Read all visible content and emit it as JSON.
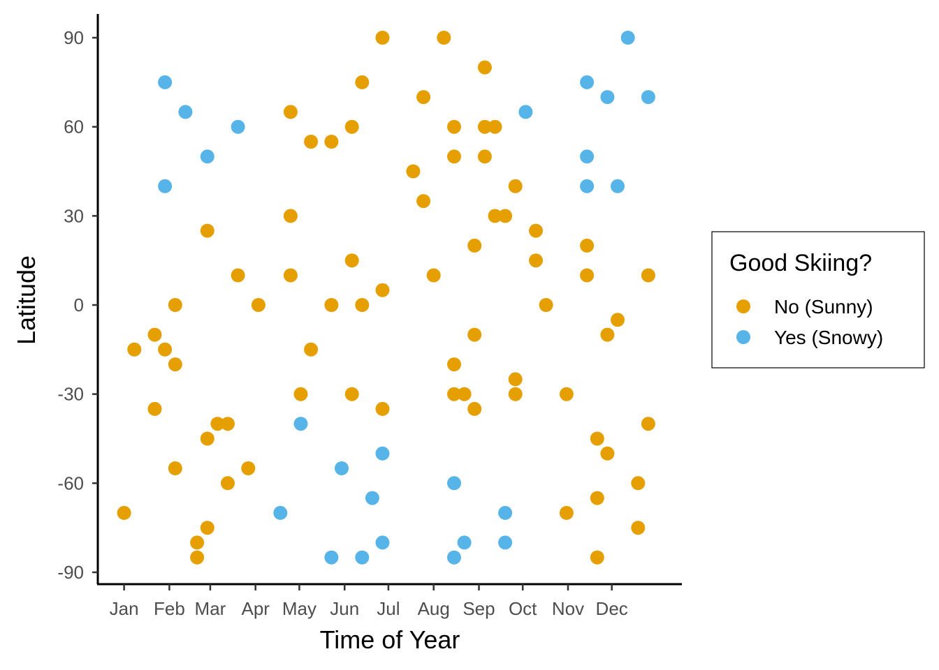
{
  "chart_data": {
    "type": "scatter",
    "xlabel": "Time of Year",
    "ylabel": "Latitude",
    "x_tick_labels": [
      "Jan",
      "Feb",
      "Mar",
      "Apr",
      "May",
      "Jun",
      "Jul",
      "Aug",
      "Sep",
      "Oct",
      "Nov",
      "Dec"
    ],
    "x_ticks_day_of_year": [
      1,
      32,
      60,
      91,
      121,
      152,
      182,
      213,
      244,
      274,
      305,
      335
    ],
    "xlim": [
      -17,
      383
    ],
    "y_ticks": [
      90,
      60,
      30,
      0,
      -30,
      -60,
      -90
    ],
    "ylim": [
      -94,
      98
    ],
    "grid": false,
    "legend": {
      "title": "Good Skiing?",
      "placement": "right",
      "entries": [
        {
          "label": "No (Sunny)",
          "color": "#E69F00"
        },
        {
          "label": "Yes (Snowy)",
          "color": "#56B4E9"
        }
      ]
    },
    "series": [
      {
        "name": "No (Sunny)",
        "color": "#E69F00",
        "points": [
          {
            "x": 1,
            "y": -70
          },
          {
            "x": 8,
            "y": -15
          },
          {
            "x": 22,
            "y": -10
          },
          {
            "x": 22,
            "y": -35
          },
          {
            "x": 29,
            "y": -15
          },
          {
            "x": 36,
            "y": 0
          },
          {
            "x": 36,
            "y": -20
          },
          {
            "x": 36,
            "y": -55
          },
          {
            "x": 51,
            "y": -80
          },
          {
            "x": 51,
            "y": -85
          },
          {
            "x": 58,
            "y": 25
          },
          {
            "x": 58,
            "y": -45
          },
          {
            "x": 58,
            "y": -75
          },
          {
            "x": 65,
            "y": -40
          },
          {
            "x": 72,
            "y": -40
          },
          {
            "x": 72,
            "y": -60
          },
          {
            "x": 79,
            "y": 10
          },
          {
            "x": 86,
            "y": -55
          },
          {
            "x": 93,
            "y": 0
          },
          {
            "x": 115,
            "y": 65
          },
          {
            "x": 115,
            "y": 30
          },
          {
            "x": 115,
            "y": 10
          },
          {
            "x": 122,
            "y": -30
          },
          {
            "x": 129,
            "y": 55
          },
          {
            "x": 129,
            "y": -15
          },
          {
            "x": 143,
            "y": 55
          },
          {
            "x": 143,
            "y": 0
          },
          {
            "x": 157,
            "y": 60
          },
          {
            "x": 157,
            "y": 15
          },
          {
            "x": 157,
            "y": -30
          },
          {
            "x": 164,
            "y": 75
          },
          {
            "x": 164,
            "y": 0
          },
          {
            "x": 178,
            "y": 90
          },
          {
            "x": 178,
            "y": 5
          },
          {
            "x": 178,
            "y": -35
          },
          {
            "x": 199,
            "y": 45
          },
          {
            "x": 206,
            "y": 70
          },
          {
            "x": 206,
            "y": 35
          },
          {
            "x": 213,
            "y": 10
          },
          {
            "x": 220,
            "y": 90
          },
          {
            "x": 227,
            "y": 60
          },
          {
            "x": 227,
            "y": 50
          },
          {
            "x": 227,
            "y": -20
          },
          {
            "x": 227,
            "y": -30
          },
          {
            "x": 234,
            "y": -30
          },
          {
            "x": 241,
            "y": 20
          },
          {
            "x": 241,
            "y": -10
          },
          {
            "x": 241,
            "y": -35
          },
          {
            "x": 248,
            "y": 80
          },
          {
            "x": 248,
            "y": 60
          },
          {
            "x": 248,
            "y": 50
          },
          {
            "x": 255,
            "y": 60
          },
          {
            "x": 255,
            "y": 30
          },
          {
            "x": 262,
            "y": 30
          },
          {
            "x": 269,
            "y": 40
          },
          {
            "x": 269,
            "y": -25
          },
          {
            "x": 269,
            "y": -30
          },
          {
            "x": 283,
            "y": 25
          },
          {
            "x": 283,
            "y": 15
          },
          {
            "x": 290,
            "y": 0
          },
          {
            "x": 304,
            "y": -30
          },
          {
            "x": 304,
            "y": -70
          },
          {
            "x": 318,
            "y": 20
          },
          {
            "x": 318,
            "y": 10
          },
          {
            "x": 325,
            "y": -45
          },
          {
            "x": 325,
            "y": -65
          },
          {
            "x": 325,
            "y": -85
          },
          {
            "x": 332,
            "y": -10
          },
          {
            "x": 332,
            "y": -50
          },
          {
            "x": 339,
            "y": -5
          },
          {
            "x": 353,
            "y": -60
          },
          {
            "x": 353,
            "y": -75
          },
          {
            "x": 360,
            "y": 10
          },
          {
            "x": 360,
            "y": -40
          }
        ]
      },
      {
        "name": "Yes (Snowy)",
        "color": "#56B4E9",
        "points": [
          {
            "x": 29,
            "y": 75
          },
          {
            "x": 29,
            "y": 40
          },
          {
            "x": 43,
            "y": 65
          },
          {
            "x": 58,
            "y": 50
          },
          {
            "x": 79,
            "y": 60
          },
          {
            "x": 108,
            "y": -70
          },
          {
            "x": 122,
            "y": -40
          },
          {
            "x": 143,
            "y": -85
          },
          {
            "x": 150,
            "y": -55
          },
          {
            "x": 164,
            "y": -85
          },
          {
            "x": 171,
            "y": -65
          },
          {
            "x": 178,
            "y": -50
          },
          {
            "x": 178,
            "y": -80
          },
          {
            "x": 227,
            "y": -60
          },
          {
            "x": 227,
            "y": -85
          },
          {
            "x": 234,
            "y": -80
          },
          {
            "x": 262,
            "y": -70
          },
          {
            "x": 262,
            "y": -80
          },
          {
            "x": 276,
            "y": 65
          },
          {
            "x": 318,
            "y": 75
          },
          {
            "x": 318,
            "y": 50
          },
          {
            "x": 318,
            "y": 40
          },
          {
            "x": 332,
            "y": 70
          },
          {
            "x": 339,
            "y": 40
          },
          {
            "x": 346,
            "y": 90
          },
          {
            "x": 360,
            "y": 70
          }
        ]
      }
    ]
  }
}
